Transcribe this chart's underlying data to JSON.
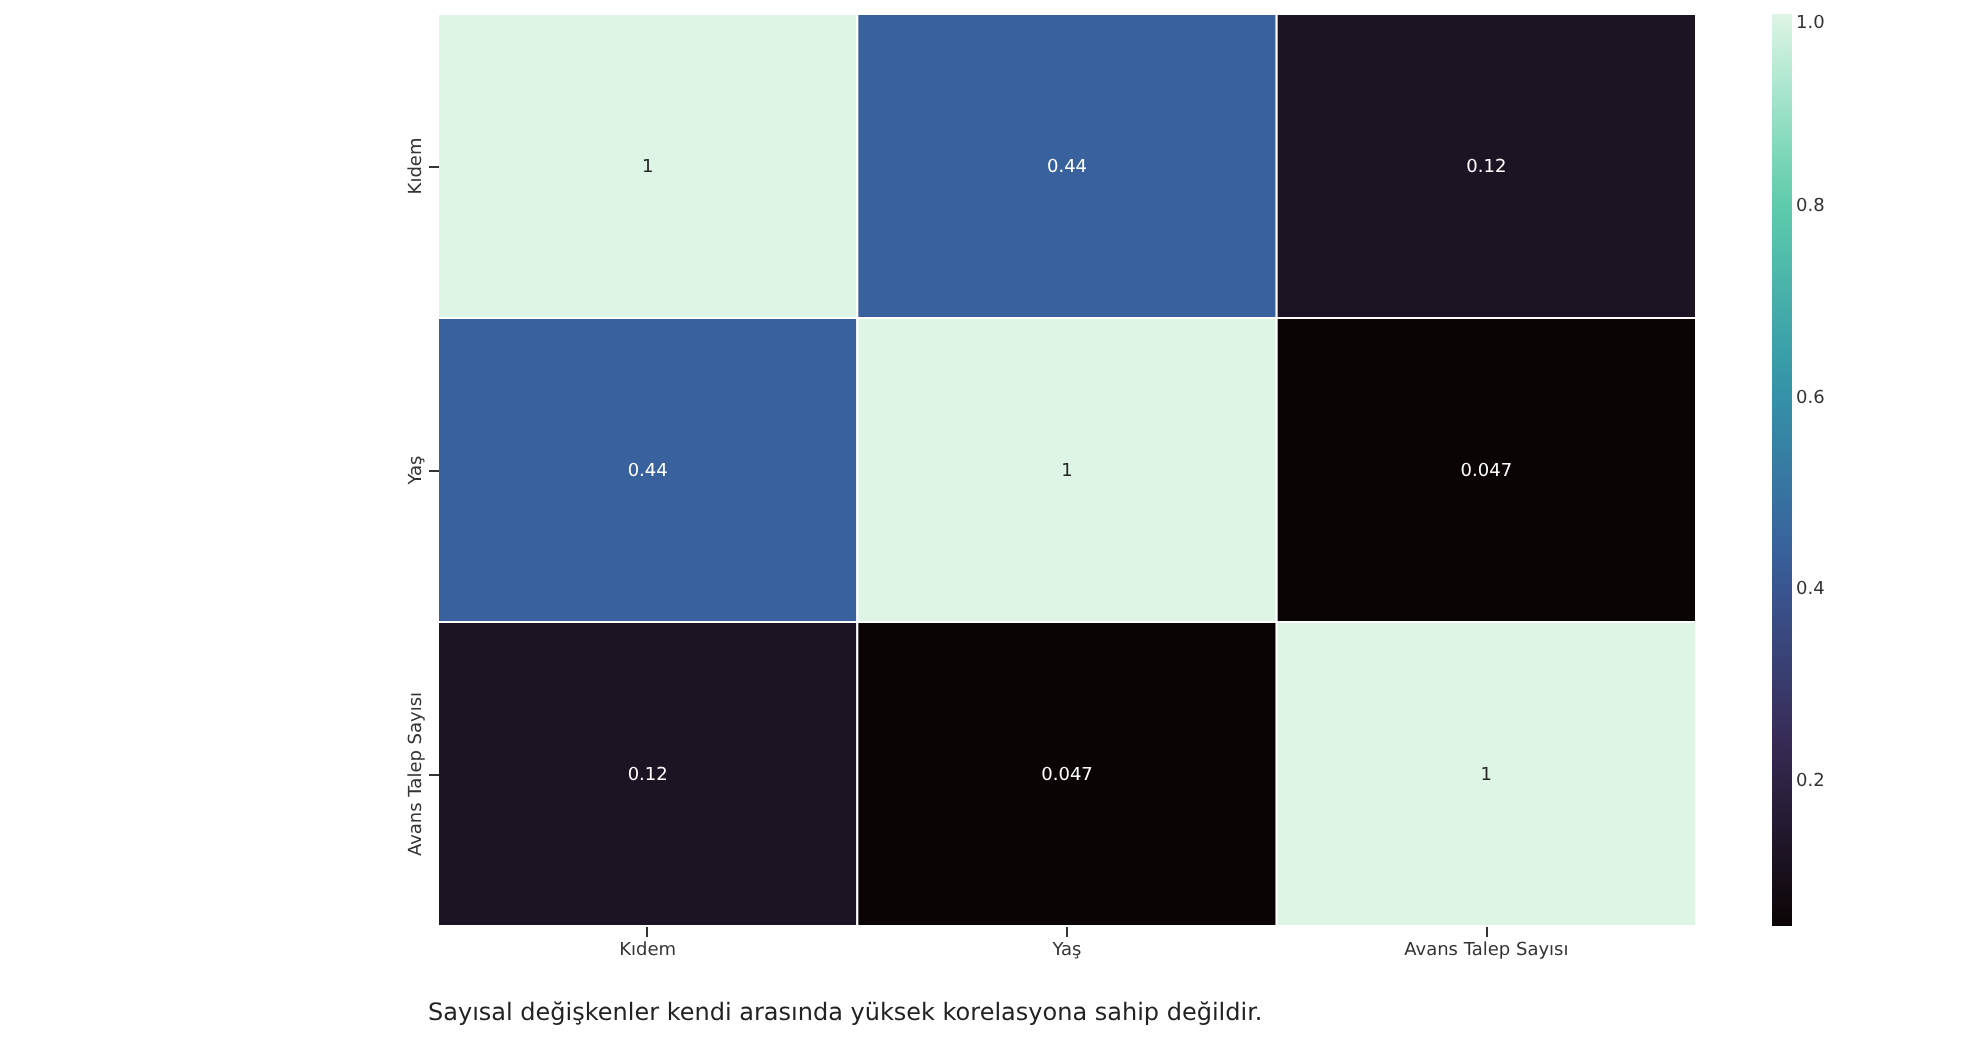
{
  "chart_data": {
    "type": "heatmap",
    "categories": [
      "Kıdem",
      "Yaş",
      "Avans Talep Sayısı"
    ],
    "y_categories": [
      "Kıdem",
      "Yaş",
      "Avans Talep Sayısı"
    ],
    "cells": [
      [
        1,
        0.44,
        0.12
      ],
      [
        0.44,
        1,
        0.047
      ],
      [
        0.12,
        0.047,
        1
      ]
    ],
    "data_labels": true,
    "clim": [
      0.047,
      1
    ],
    "cticks": [
      0.2,
      0.4,
      0.6,
      0.8,
      {
        "value": 1,
        "label": "1.0"
      }
    ],
    "annotations": [
      "Sayısal değişkenler kendi arasında yüksek korelasyona sahip değildir."
    ]
  }
}
